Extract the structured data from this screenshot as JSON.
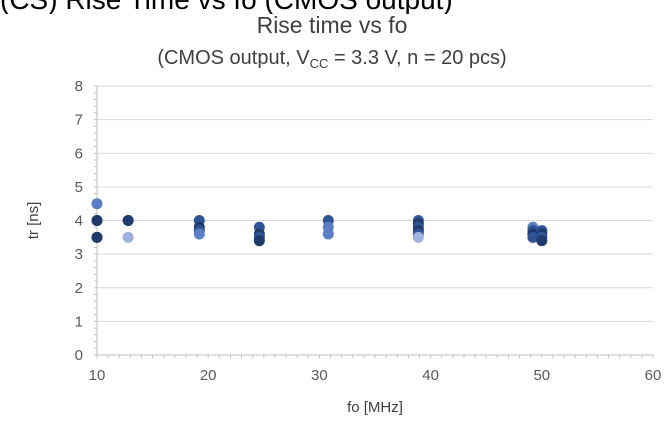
{
  "header": {
    "cropped_text": "(CS) Rise Time vs fo (CMOS output)"
  },
  "chart_data": {
    "type": "scatter",
    "title": "Rise time vs fo",
    "subtitle": {
      "prefix": "(CMOS output, V",
      "subscript": "CC",
      "suffix": " = 3.3 V, n = 20 pcs)"
    },
    "xlabel": "fo [MHz]",
    "ylabel": "tr [ns]",
    "xlim": [
      10,
      60
    ],
    "ylim": [
      0,
      8
    ],
    "xticks": [
      "10",
      "20",
      "30",
      "40",
      "50",
      "60"
    ],
    "yticks": [
      "0",
      "1",
      "2",
      "3",
      "4",
      "5",
      "6",
      "7",
      "8"
    ],
    "grid": "horizontal",
    "colors": {
      "series_light": "#9DB3DD",
      "series_mid": "#5B7FC6",
      "series_dark": "#2F5597",
      "series_darkest": "#1F3A6B",
      "grid": "#D9D9D9",
      "axis": "#BFBFBF"
    },
    "points": [
      {
        "x": 10,
        "y": 4.5,
        "shade": "mid"
      },
      {
        "x": 10,
        "y": 4.0,
        "shade": "dark"
      },
      {
        "x": 10,
        "y": 4.0,
        "shade": "darkest"
      },
      {
        "x": 10,
        "y": 3.5,
        "shade": "dark"
      },
      {
        "x": 10,
        "y": 3.5,
        "shade": "darkest"
      },
      {
        "x": 12.8,
        "y": 4.0,
        "shade": "dark"
      },
      {
        "x": 12.8,
        "y": 4.0,
        "shade": "darkest"
      },
      {
        "x": 12.8,
        "y": 3.5,
        "shade": "light"
      },
      {
        "x": 19.2,
        "y": 4.0,
        "shade": "dark"
      },
      {
        "x": 19.2,
        "y": 3.8,
        "shade": "darkest"
      },
      {
        "x": 19.2,
        "y": 3.7,
        "shade": "dark"
      },
      {
        "x": 19.2,
        "y": 3.6,
        "shade": "mid"
      },
      {
        "x": 24.6,
        "y": 3.8,
        "shade": "dark"
      },
      {
        "x": 24.6,
        "y": 3.6,
        "shade": "darkest"
      },
      {
        "x": 24.6,
        "y": 3.5,
        "shade": "dark"
      },
      {
        "x": 24.6,
        "y": 3.4,
        "shade": "darkest"
      },
      {
        "x": 30.8,
        "y": 4.0,
        "shade": "dark"
      },
      {
        "x": 30.8,
        "y": 3.8,
        "shade": "mid"
      },
      {
        "x": 30.8,
        "y": 3.6,
        "shade": "mid"
      },
      {
        "x": 38.9,
        "y": 4.0,
        "shade": "dark"
      },
      {
        "x": 38.9,
        "y": 3.9,
        "shade": "darkest"
      },
      {
        "x": 38.9,
        "y": 3.8,
        "shade": "dark"
      },
      {
        "x": 38.9,
        "y": 3.7,
        "shade": "darkest"
      },
      {
        "x": 38.9,
        "y": 3.6,
        "shade": "dark"
      },
      {
        "x": 38.9,
        "y": 3.5,
        "shade": "light"
      },
      {
        "x": 49.2,
        "y": 3.8,
        "shade": "mid"
      },
      {
        "x": 49.2,
        "y": 3.7,
        "shade": "dark"
      },
      {
        "x": 49.2,
        "y": 3.6,
        "shade": "darkest"
      },
      {
        "x": 49.2,
        "y": 3.5,
        "shade": "dark"
      },
      {
        "x": 50.0,
        "y": 3.7,
        "shade": "dark"
      },
      {
        "x": 50.0,
        "y": 3.6,
        "shade": "darkest"
      },
      {
        "x": 50.0,
        "y": 3.5,
        "shade": "dark"
      },
      {
        "x": 50.0,
        "y": 3.4,
        "shade": "darkest"
      }
    ]
  }
}
